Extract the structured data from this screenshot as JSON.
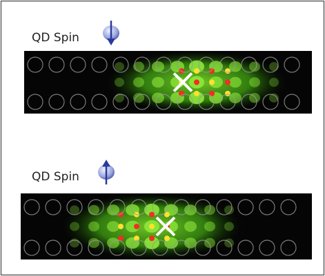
{
  "panels": [
    {
      "label": "QD Spin"
    },
    {
      "label": "QD Spin"
    }
  ]
}
